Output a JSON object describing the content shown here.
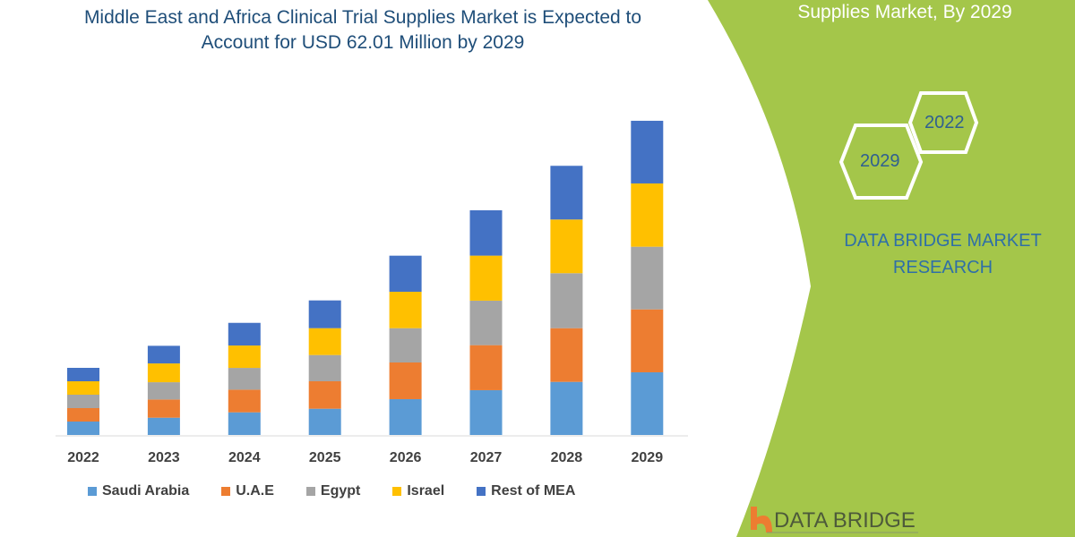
{
  "title": {
    "line1": "Middle East and Africa Clinical Trial Supplies Market is Expected to",
    "line2": "Account for USD 62.01 Million by 2029"
  },
  "side_panel": {
    "heading": "Supplies Market, By 2029",
    "hex_years": [
      "2022",
      "2029"
    ],
    "brand_line1": "DATA BRIDGE MARKET",
    "brand_line2": "RESEARCH",
    "logo_text": "DATA BRIDGE",
    "panel_color": "#a4c64a"
  },
  "chart_data": {
    "type": "bar",
    "stacked": true,
    "title": "Middle East and Africa Clinical Trial Supplies Market is Expected to Account for USD 62.01 Million by 2029",
    "xlabel": "",
    "ylabel": "",
    "y_axis_shown": false,
    "grid": false,
    "legend_position": "bottom",
    "categories": [
      "2022",
      "2023",
      "2024",
      "2025",
      "2026",
      "2027",
      "2028",
      "2029"
    ],
    "series": [
      {
        "name": "Saudi Arabia",
        "color": "#5b9bd5",
        "values": [
          2.65,
          3.41,
          4.47,
          5.18,
          7.07,
          8.84,
          10.48,
          12.37
        ]
      },
      {
        "name": "U.A.E",
        "color": "#ed7d31",
        "values": [
          2.65,
          3.59,
          4.47,
          5.42,
          7.24,
          8.89,
          10.6,
          12.42
        ]
      },
      {
        "name": "Egypt",
        "color": "#a5a5a5",
        "values": [
          2.65,
          3.41,
          4.3,
          5.18,
          6.77,
          8.78,
          10.85,
          12.37
        ]
      },
      {
        "name": "Israel",
        "color": "#ffc000",
        "values": [
          2.65,
          3.71,
          4.42,
          5.3,
          7.19,
          8.89,
          10.6,
          12.49
        ]
      },
      {
        "name": "Rest of MEA",
        "color": "#4472c4",
        "values": [
          2.65,
          3.48,
          4.47,
          5.48,
          7.12,
          8.96,
          10.6,
          12.37
        ]
      }
    ],
    "ylim": [
      0,
      62.01
    ]
  }
}
